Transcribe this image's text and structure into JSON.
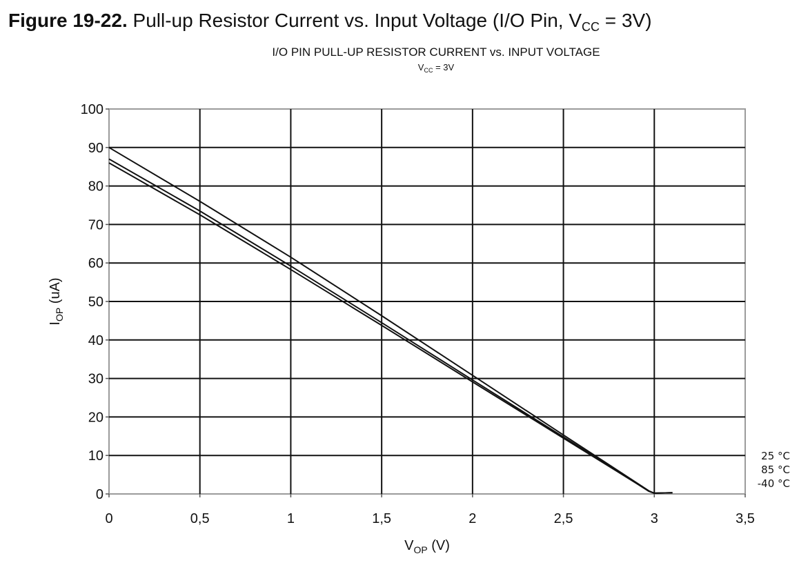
{
  "figure": {
    "number": "Figure 19-22.",
    "caption_pre": "Pull-up Resistor Current vs. Input Voltage (I/O Pin, V",
    "caption_sub": "CC",
    "caption_post": " = 3V)"
  },
  "chart_data": {
    "type": "line",
    "title": "I/O PIN PULL-UP RESISTOR CURRENT vs. INPUT VOLTAGE",
    "subtitle_main": "V",
    "subtitle_sub": "CC",
    "subtitle_post": " = 3V",
    "xlabel_main": "V",
    "xlabel_sub": "OP",
    "xlabel_post": " (V)",
    "ylabel_main": "I",
    "ylabel_sub": "OP",
    "ylabel_post": " (uA)",
    "xlim": [
      0,
      3.5
    ],
    "ylim": [
      0,
      100
    ],
    "xticks": [
      0,
      0.5,
      1,
      1.5,
      2,
      2.5,
      3,
      3.5
    ],
    "xtick_labels": [
      "0",
      "0,5",
      "1",
      "1,5",
      "2",
      "2,5",
      "3",
      "3,5"
    ],
    "yticks": [
      0,
      10,
      20,
      30,
      40,
      50,
      60,
      70,
      80,
      90,
      100
    ],
    "ytick_labels": [
      "0",
      "10",
      "20",
      "30",
      "40",
      "50",
      "60",
      "70",
      "80",
      "90",
      "100"
    ],
    "grid": true,
    "legend_placement": "right",
    "series": [
      {
        "name": "25 °C",
        "x": [
          0,
          0.5,
          1,
          1.5,
          2,
          2.5,
          2.9,
          2.97,
          3.0,
          3.1
        ],
        "y": [
          90,
          76,
          61.5,
          46.3,
          30.8,
          15.3,
          3.0,
          0.8,
          0.2,
          0.3
        ]
      },
      {
        "name": "85 °C",
        "x": [
          0,
          0.5,
          1,
          1.5,
          2,
          2.5,
          2.9,
          2.97,
          3.0,
          3.1
        ],
        "y": [
          87,
          73.5,
          59.2,
          44.5,
          29.6,
          14.8,
          2.9,
          0.7,
          0.2,
          0.3
        ]
      },
      {
        "name": "-40 °C",
        "x": [
          0,
          0.5,
          1,
          1.5,
          2,
          2.5,
          2.9,
          2.97,
          3.0,
          3.1
        ],
        "y": [
          86,
          72.5,
          58.3,
          43.8,
          29.1,
          14.5,
          2.8,
          0.7,
          0.2,
          0.3
        ]
      }
    ]
  }
}
